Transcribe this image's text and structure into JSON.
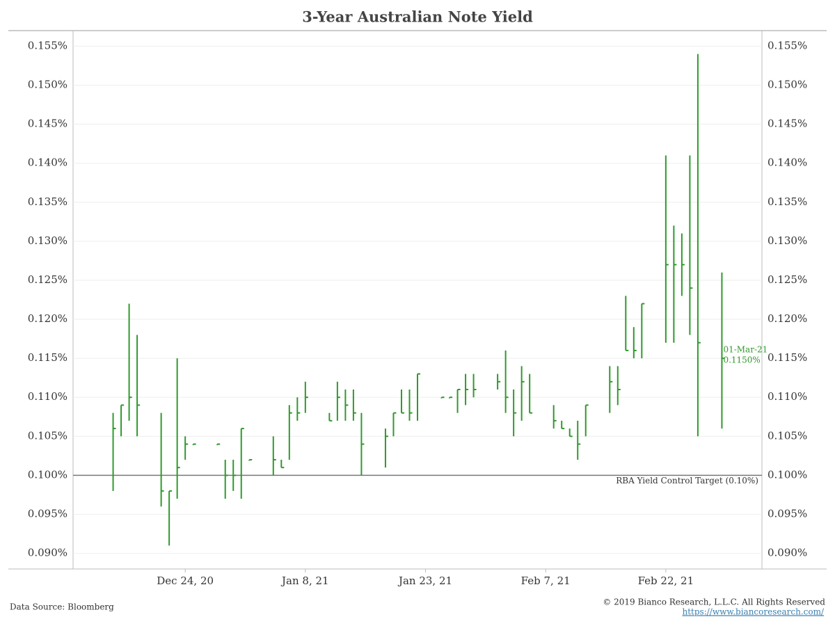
{
  "chart_data": {
    "type": "hlc",
    "title": "3-Year Australian Note Yield",
    "color": "#2e9a2a",
    "x": [
      "2020-12-15",
      "2020-12-16",
      "2020-12-17",
      "2020-12-18",
      "2020-12-21",
      "2020-12-22",
      "2020-12-23",
      "2020-12-24",
      "2020-12-25",
      "2020-12-28",
      "2020-12-29",
      "2020-12-30",
      "2020-12-31",
      "2021-01-01",
      "2021-01-04",
      "2021-01-05",
      "2021-01-06",
      "2021-01-07",
      "2021-01-08",
      "2021-01-11",
      "2021-01-12",
      "2021-01-13",
      "2021-01-14",
      "2021-01-15",
      "2021-01-18",
      "2021-01-19",
      "2021-01-20",
      "2021-01-21",
      "2021-01-22",
      "2021-01-25",
      "2021-01-26",
      "2021-01-27",
      "2021-01-28",
      "2021-01-29",
      "2021-02-01",
      "2021-02-02",
      "2021-02-03",
      "2021-02-04",
      "2021-02-05",
      "2021-02-08",
      "2021-02-09",
      "2021-02-10",
      "2021-02-11",
      "2021-02-12",
      "2021-02-15",
      "2021-02-16",
      "2021-02-17",
      "2021-02-18",
      "2021-02-19",
      "2021-02-22",
      "2021-02-23",
      "2021-02-24",
      "2021-02-25",
      "2021-02-26",
      "2021-03-01"
    ],
    "high": [
      0.108,
      0.109,
      0.122,
      0.118,
      0.108,
      0.098,
      0.115,
      0.105,
      0.104,
      0.104,
      0.102,
      0.102,
      0.106,
      0.102,
      0.105,
      0.102,
      0.109,
      0.11,
      0.112,
      0.108,
      0.112,
      0.111,
      0.111,
      0.108,
      0.106,
      0.108,
      0.111,
      0.111,
      0.113,
      0.11,
      0.11,
      0.111,
      0.113,
      0.113,
      0.113,
      0.116,
      0.111,
      0.114,
      0.113,
      0.109,
      0.107,
      0.106,
      0.107,
      0.109,
      0.114,
      0.114,
      0.123,
      0.119,
      0.122,
      0.141,
      0.132,
      0.131,
      0.141,
      0.154,
      0.126
    ],
    "low": [
      0.098,
      0.105,
      0.107,
      0.105,
      0.096,
      0.091,
      0.097,
      0.102,
      0.104,
      0.104,
      0.097,
      0.098,
      0.097,
      0.102,
      0.1,
      0.101,
      0.102,
      0.107,
      0.108,
      0.107,
      0.107,
      0.107,
      0.107,
      0.1,
      0.101,
      0.105,
      0.108,
      0.107,
      0.107,
      0.11,
      0.11,
      0.108,
      0.109,
      0.11,
      0.111,
      0.108,
      0.105,
      0.107,
      0.108,
      0.106,
      0.106,
      0.105,
      0.102,
      0.105,
      0.108,
      0.109,
      0.116,
      0.115,
      0.115,
      0.117,
      0.117,
      0.123,
      0.118,
      0.105,
      0.106
    ],
    "close": [
      0.106,
      0.109,
      0.11,
      0.109,
      0.098,
      0.098,
      0.101,
      0.104,
      0.104,
      0.104,
      0.1,
      0.1,
      0.106,
      0.102,
      0.102,
      0.101,
      0.108,
      0.108,
      0.11,
      0.107,
      0.11,
      0.109,
      0.108,
      0.104,
      0.105,
      0.108,
      0.108,
      0.108,
      0.113,
      0.11,
      0.11,
      0.111,
      0.111,
      0.111,
      0.112,
      0.11,
      0.108,
      0.112,
      0.108,
      0.107,
      0.106,
      0.105,
      0.104,
      0.109,
      0.112,
      0.111,
      0.116,
      0.116,
      0.122,
      0.127,
      0.127,
      0.127,
      0.124,
      0.117,
      0.115
    ],
    "xlim": [
      "2020-12-10",
      "2021-03-06"
    ],
    "xticks": [
      {
        "value": "2020-12-24",
        "label": "Dec 24, 20"
      },
      {
        "value": "2021-01-08",
        "label": "Jan 8, 21"
      },
      {
        "value": "2021-01-23",
        "label": "Jan 23, 21"
      },
      {
        "value": "2021-02-07",
        "label": "Feb 7, 21"
      },
      {
        "value": "2021-02-22",
        "label": "Feb 22, 21"
      }
    ],
    "ylim": [
      0.088,
      0.157
    ],
    "yticks": [
      {
        "value": 0.09,
        "label": "0.090%"
      },
      {
        "value": 0.095,
        "label": "0.095%"
      },
      {
        "value": 0.1,
        "label": "0.100%"
      },
      {
        "value": 0.105,
        "label": "0.105%"
      },
      {
        "value": 0.11,
        "label": "0.110%"
      },
      {
        "value": 0.115,
        "label": "0.115%"
      },
      {
        "value": 0.12,
        "label": "0.120%"
      },
      {
        "value": 0.125,
        "label": "0.125%"
      },
      {
        "value": 0.13,
        "label": "0.130%"
      },
      {
        "value": 0.135,
        "label": "0.135%"
      },
      {
        "value": 0.14,
        "label": "0.140%"
      },
      {
        "value": 0.145,
        "label": "0.145%"
      },
      {
        "value": 0.15,
        "label": "0.150%"
      },
      {
        "value": 0.155,
        "label": "0.155%"
      }
    ],
    "grid": true,
    "reference_line": {
      "value": 0.1,
      "label": "RBA Yield Control Target (0.10%)"
    },
    "annotation": {
      "date_label": "01-Mar-21",
      "value_label": "0.1150%"
    },
    "source": "Data Source: Bloomberg",
    "copyright": "© 2019 Bianco Research, L.L.C. All Rights Reserved",
    "url": "https://www.biancoresearch.com/"
  }
}
